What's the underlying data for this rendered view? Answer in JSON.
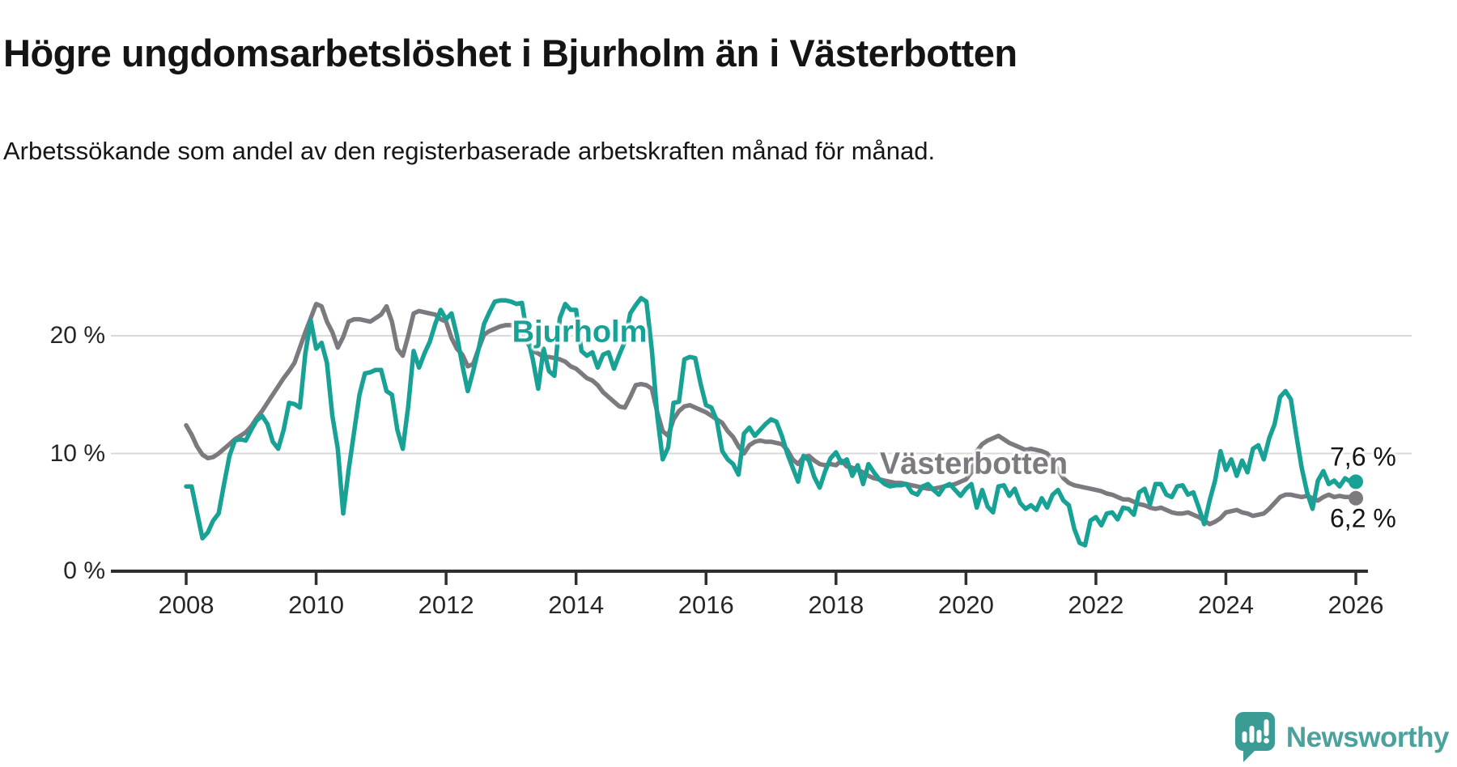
{
  "title": "Högre ungdomsarbetslöshet i Bjurholm än i Västerbotten",
  "subtitle": "Arbetssökande som andel av den registerbaserade arbetskraften månad för månad.",
  "branding": {
    "name": "Newsworthy",
    "text_color": "#4BA19B",
    "icon_color": "#3B9C95"
  },
  "colors": {
    "grid": "#D9D9D9",
    "axis": "#2F2F2F",
    "text": "#262626"
  },
  "chart_data": {
    "type": "line",
    "title": "Högre ungdomsarbetslöshet i Bjurholm än i Västerbotten",
    "subtitle": "Arbetssökande som andel av den registerbaserade arbetskraften månad för månad.",
    "unit": "%",
    "frequency": "monthly",
    "x_start": "2008-01",
    "x_end": "2026-01",
    "x_ticks": [
      "2008",
      "2010",
      "2012",
      "2014",
      "2016",
      "2018",
      "2020",
      "2022",
      "2024",
      "2026"
    ],
    "y_ticks": [
      "0 %",
      "10 %",
      "20 %"
    ],
    "y_tick_values": [
      0,
      10,
      20
    ],
    "ylim": [
      0,
      24.5
    ],
    "grid": "horizontal",
    "legend_position": "inline-labels",
    "series": [
      {
        "name": "Bjurholm",
        "color": "#17A295",
        "end_label": "7,6 %",
        "last_value": 7.6,
        "values": [
          7.2,
          7.2,
          5.0,
          2.8,
          3.3,
          4.3,
          4.9,
          7.4,
          9.8,
          11.1,
          11.2,
          11.1,
          12.0,
          12.8,
          13.2,
          12.5,
          11.0,
          10.4,
          12.0,
          14.3,
          14.2,
          13.9,
          18.5,
          21.3,
          18.9,
          19.4,
          17.7,
          13.2,
          10.4,
          4.9,
          8.6,
          11.8,
          15.0,
          16.8,
          16.9,
          17.1,
          17.1,
          15.3,
          15.0,
          12.0,
          10.4,
          14.0,
          18.7,
          17.3,
          18.5,
          19.5,
          21.0,
          22.2,
          21.4,
          21.9,
          20.0,
          17.5,
          15.3,
          17.0,
          18.9,
          21.0,
          22.0,
          22.9,
          23.0,
          23.0,
          22.9,
          22.7,
          22.8,
          20.0,
          18.0,
          15.5,
          18.9,
          17.0,
          16.6,
          21.5,
          22.7,
          22.2,
          22.2,
          18.7,
          18.3,
          18.6,
          17.3,
          18.4,
          18.6,
          17.2,
          18.4,
          19.5,
          21.9,
          22.6,
          23.2,
          22.9,
          18.8,
          13.2,
          9.5,
          10.5,
          14.3,
          14.4,
          18.0,
          18.2,
          18.1,
          15.9,
          14.1,
          13.9,
          12.8,
          10.2,
          9.5,
          9.1,
          8.2,
          11.7,
          12.2,
          11.5,
          12.0,
          12.5,
          12.9,
          12.7,
          11.5,
          10.0,
          8.8,
          7.6,
          9.8,
          9.4,
          8.0,
          7.1,
          8.5,
          9.6,
          10.1,
          9.2,
          9.5,
          8.1,
          9.0,
          7.4,
          9.1,
          8.4,
          7.8,
          7.4,
          7.2,
          7.3,
          7.3,
          7.4,
          6.7,
          6.5,
          7.2,
          7.4,
          6.9,
          6.5,
          7.2,
          7.4,
          6.9,
          6.4,
          7.0,
          7.4,
          5.4,
          6.9,
          5.5,
          5.0,
          7.2,
          7.3,
          6.4,
          7.0,
          5.8,
          5.3,
          5.6,
          5.2,
          6.2,
          5.4,
          6.5,
          6.9,
          6.0,
          5.6,
          3.6,
          2.4,
          2.2,
          4.3,
          4.6,
          3.9,
          4.9,
          5.0,
          4.4,
          5.4,
          5.3,
          4.8,
          6.7,
          7.0,
          5.7,
          7.4,
          7.4,
          6.5,
          6.3,
          7.2,
          7.3,
          6.5,
          6.7,
          5.4,
          4.0,
          6.0,
          7.7,
          10.2,
          8.6,
          9.5,
          8.1,
          9.4,
          8.4,
          10.4,
          10.7,
          9.5,
          11.3,
          12.5,
          14.8,
          15.3,
          14.6,
          11.6,
          8.8,
          6.7,
          5.3,
          7.7,
          8.5,
          7.4,
          7.7,
          7.2,
          7.9,
          7.6,
          7.6
        ]
      },
      {
        "name": "Västerbotten",
        "color": "#7D7A7F",
        "end_label": "6,2 %",
        "last_value": 6.2,
        "values": [
          12.4,
          11.6,
          10.6,
          9.9,
          9.6,
          9.7,
          10.0,
          10.4,
          10.8,
          11.2,
          11.5,
          11.8,
          12.3,
          13.0,
          13.6,
          14.3,
          15.0,
          15.7,
          16.4,
          17.0,
          17.7,
          19.0,
          20.3,
          21.5,
          22.7,
          22.5,
          21.2,
          20.3,
          19.0,
          19.9,
          21.2,
          21.4,
          21.4,
          21.3,
          21.2,
          21.5,
          21.8,
          22.5,
          21.2,
          18.9,
          18.3,
          20.0,
          21.9,
          22.1,
          22.0,
          21.9,
          21.8,
          21.4,
          21.2,
          19.8,
          18.9,
          18.4,
          17.4,
          17.6,
          18.9,
          20.1,
          20.4,
          20.6,
          20.8,
          20.9,
          20.9,
          20.7,
          20.3,
          19.4,
          18.7,
          18.5,
          18.2,
          18.2,
          18.1,
          18.0,
          17.8,
          17.4,
          17.2,
          16.8,
          16.4,
          16.2,
          15.8,
          15.2,
          14.8,
          14.4,
          14.0,
          13.9,
          14.8,
          15.8,
          15.9,
          15.8,
          15.5,
          13.5,
          11.9,
          11.5,
          12.9,
          13.6,
          14.0,
          14.1,
          13.9,
          13.7,
          13.5,
          13.2,
          12.9,
          12.6,
          11.9,
          11.4,
          10.6,
          10.0,
          10.7,
          11.0,
          11.1,
          11.0,
          11.0,
          10.9,
          10.8,
          10.3,
          9.5,
          9.1,
          9.7,
          9.8,
          9.4,
          9.1,
          9.0,
          9.1,
          9.0,
          9.4,
          8.9,
          8.8,
          8.6,
          8.4,
          8.1,
          7.9,
          7.8,
          7.7,
          7.6,
          7.5,
          7.5,
          7.4,
          7.3,
          7.2,
          7.1,
          7.0,
          7.0,
          7.1,
          7.2,
          7.3,
          7.4,
          7.6,
          7.8,
          8.4,
          10.2,
          10.8,
          11.1,
          11.3,
          11.5,
          11.2,
          10.9,
          10.7,
          10.5,
          10.3,
          10.4,
          10.3,
          10.2,
          10.0,
          9.4,
          8.6,
          7.9,
          7.5,
          7.3,
          7.2,
          7.1,
          7.0,
          6.9,
          6.8,
          6.6,
          6.5,
          6.3,
          6.1,
          6.1,
          5.9,
          5.7,
          5.6,
          5.4,
          5.3,
          5.4,
          5.2,
          5.0,
          4.9,
          4.9,
          5.0,
          4.8,
          4.6,
          4.3,
          4.0,
          4.2,
          4.5,
          5.0,
          5.1,
          5.2,
          5.0,
          4.9,
          4.7,
          4.8,
          4.9,
          5.3,
          5.8,
          6.3,
          6.5,
          6.5,
          6.4,
          6.3,
          6.4,
          6.2,
          6.0,
          6.3,
          6.5,
          6.3,
          6.4,
          6.3,
          6.3,
          6.2
        ]
      }
    ]
  }
}
